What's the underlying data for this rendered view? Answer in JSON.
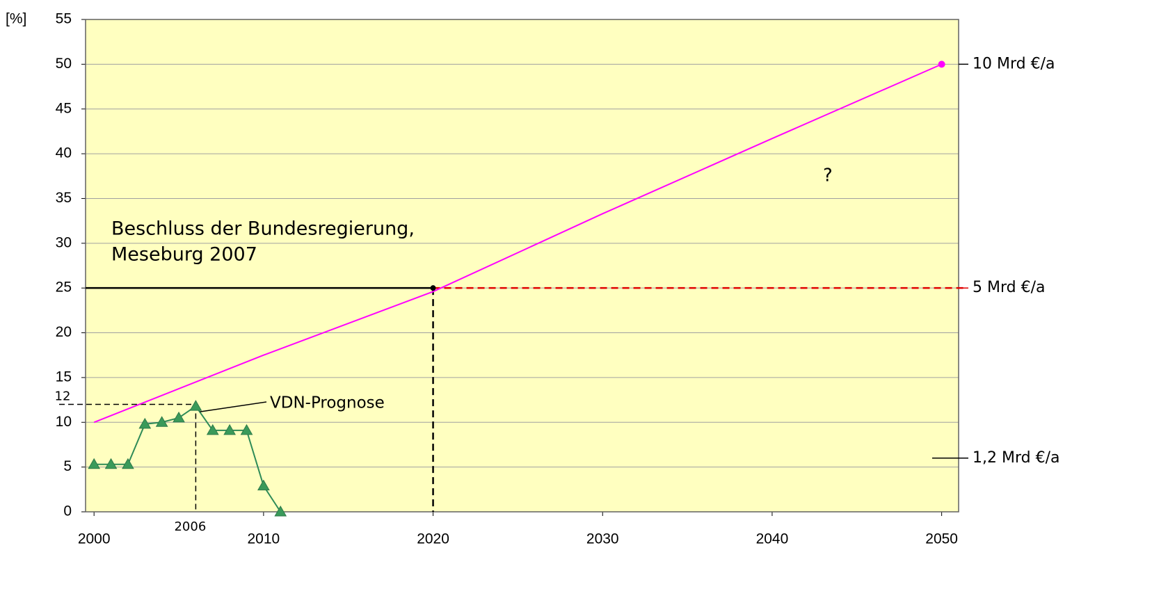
{
  "chart_data": {
    "type": "line",
    "y_unit_label": "[%]",
    "xlim": [
      1999.5,
      2051
    ],
    "xticks": [
      2000,
      2010,
      2020,
      2030,
      2040,
      2050
    ],
    "ylim": [
      0,
      55
    ],
    "yticks": [
      0,
      5,
      10,
      15,
      20,
      25,
      30,
      35,
      40,
      45,
      50,
      55
    ],
    "grid": true,
    "background": "#ffffc0",
    "series": [
      {
        "name": "VDN-Prognose",
        "color": "#2e8b57",
        "marker": "triangle",
        "x": [
          2000,
          2001,
          2002,
          2003,
          2004,
          2005,
          2006,
          2007,
          2008,
          2009,
          2010,
          2011
        ],
        "values": [
          5.3,
          5.3,
          5.3,
          9.8,
          10,
          10.5,
          11.8,
          9.1,
          9.1,
          9.1,
          2.9,
          0
        ]
      },
      {
        "color": "#ff00ff",
        "marker": "end-dot",
        "x": [
          2000,
          2010,
          2020,
          2030,
          2040,
          2050
        ],
        "values": [
          10,
          17.5,
          24.6,
          33.3,
          41.7,
          50
        ]
      }
    ],
    "target": {
      "lines": [
        "Beschluss der Bundesregierung,",
        "Meseburg 2007"
      ],
      "value": 25,
      "year": 2020,
      "color": "#000000",
      "extension_color": "#e00000"
    },
    "guide": {
      "value": 12,
      "year": 2006
    },
    "cost_labels": [
      {
        "text": "10 Mrd €/a",
        "value": 50
      },
      {
        "text": "5 Mrd €/a",
        "value": 25
      },
      {
        "text": "1,2 Mrd €/a",
        "value": 6
      }
    ],
    "question": "?"
  }
}
